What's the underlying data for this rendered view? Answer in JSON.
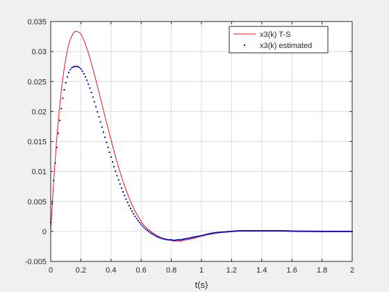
{
  "chart_data": {
    "type": "line",
    "title": "",
    "xlabel": "t(s)",
    "ylabel": "",
    "xlim": [
      0,
      2
    ],
    "ylim": [
      -0.005,
      0.035
    ],
    "grid": true,
    "legend_position": "top-right",
    "xticks": [
      0,
      0.2,
      0.4,
      0.6,
      0.8,
      1,
      1.2,
      1.4,
      1.6,
      1.8,
      2
    ],
    "xtick_labels": [
      "0",
      "0.2",
      "0.4",
      "0.6",
      "0.8",
      "1",
      "1.2",
      "1.4",
      "1.6",
      "1.8",
      "2"
    ],
    "yticks": [
      -0.005,
      0,
      0.005,
      0.01,
      0.015,
      0.02,
      0.025,
      0.03,
      0.035
    ],
    "ytick_labels": [
      "-0.005",
      "0",
      "0.005",
      "0.01",
      "0.015",
      "0.02",
      "0.025",
      "0.03",
      "0.035"
    ],
    "series": [
      {
        "name": "x3(k) T-S",
        "style": "line",
        "color": "#e8141c",
        "x": [
          0,
          0.02,
          0.04,
          0.06,
          0.08,
          0.1,
          0.12,
          0.14,
          0.16,
          0.18,
          0.2,
          0.22,
          0.24,
          0.26,
          0.28,
          0.3,
          0.32,
          0.34,
          0.36,
          0.38,
          0.4,
          0.42,
          0.44,
          0.46,
          0.48,
          0.5,
          0.52,
          0.54,
          0.56,
          0.58,
          0.6,
          0.62,
          0.64,
          0.66,
          0.68,
          0.7,
          0.72,
          0.74,
          0.76,
          0.78,
          0.8,
          0.82,
          0.84,
          0.86,
          0.88,
          0.9,
          0.92,
          0.94,
          0.96,
          0.98,
          1.0,
          1.05,
          1.1,
          1.15,
          1.2,
          1.25,
          1.3,
          1.35,
          1.4,
          1.45,
          1.5,
          1.55,
          1.6,
          1.65,
          1.7,
          1.75,
          1.8,
          1.85,
          1.9,
          1.95,
          2.0
        ],
        "y": [
          0,
          0.0085,
          0.0155,
          0.021,
          0.0255,
          0.0288,
          0.0312,
          0.0326,
          0.0333,
          0.0333,
          0.0329,
          0.0319,
          0.0305,
          0.0289,
          0.0271,
          0.0252,
          0.0232,
          0.0212,
          0.0192,
          0.0172,
          0.0153,
          0.0134,
          0.0116,
          0.0099,
          0.0083,
          0.0069,
          0.0056,
          0.0044,
          0.0034,
          0.0025,
          0.0017,
          0.001,
          0.0005,
          0.0001,
          -0.0003,
          -0.0006,
          -0.0009,
          -0.0011,
          -0.0013,
          -0.0014,
          -0.0015,
          -0.0016,
          -0.0016,
          -0.0016,
          -0.0015,
          -0.0014,
          -0.0013,
          -0.0012,
          -0.0011,
          -0.0009,
          -0.0008,
          -0.0005,
          -0.0003,
          -0.0001,
          0.0,
          0.0001,
          0.0001,
          0.0001,
          0.0001,
          0.0001,
          0.0001,
          0.0001,
          5e-05,
          3e-05,
          2e-05,
          1e-05,
          0,
          0,
          0,
          0,
          0
        ]
      },
      {
        "name": "x3(k) estimated",
        "style": "dots",
        "color": "#0000b4",
        "x": [
          0,
          0.02,
          0.04,
          0.06,
          0.08,
          0.1,
          0.12,
          0.14,
          0.16,
          0.18,
          0.2,
          0.22,
          0.24,
          0.26,
          0.28,
          0.3,
          0.32,
          0.34,
          0.36,
          0.38,
          0.4,
          0.42,
          0.44,
          0.46,
          0.48,
          0.5,
          0.52,
          0.54,
          0.56,
          0.58,
          0.6,
          0.62,
          0.64,
          0.66,
          0.68,
          0.7,
          0.72,
          0.74,
          0.76,
          0.78,
          0.8,
          0.82,
          0.84,
          0.86,
          0.88,
          0.9,
          0.92,
          0.94,
          0.96,
          0.98,
          1.0,
          1.05,
          1.1,
          1.15,
          1.2,
          1.25,
          1.3,
          1.35,
          1.4,
          1.45,
          1.5,
          1.55,
          1.6,
          1.65,
          1.7,
          1.75,
          1.8,
          1.85,
          1.9,
          1.95,
          2.0
        ],
        "y": [
          0.0015,
          0.0085,
          0.014,
          0.0185,
          0.0222,
          0.0248,
          0.0265,
          0.0273,
          0.0275,
          0.0275,
          0.0271,
          0.0263,
          0.0252,
          0.0239,
          0.0224,
          0.0208,
          0.0191,
          0.0174,
          0.0157,
          0.014,
          0.0124,
          0.0108,
          0.0093,
          0.0079,
          0.0066,
          0.0054,
          0.0043,
          0.0034,
          0.0025,
          0.0018,
          0.0012,
          0.0006,
          0.0002,
          -0.0002,
          -0.0005,
          -0.0008,
          -0.001,
          -0.0012,
          -0.0013,
          -0.0014,
          -0.0014,
          -0.0015,
          -0.0014,
          -0.0014,
          -0.0013,
          -0.0012,
          -0.0011,
          -0.001,
          -0.0009,
          -0.0008,
          -0.0007,
          -0.0004,
          -0.0002,
          -0.0001,
          0.0,
          0.0001,
          0.0001,
          0.0001,
          0.0001,
          0.0001,
          0.0001,
          0.0001,
          5e-05,
          3e-05,
          2e-05,
          1e-05,
          0,
          0,
          0,
          0,
          0
        ]
      }
    ]
  }
}
